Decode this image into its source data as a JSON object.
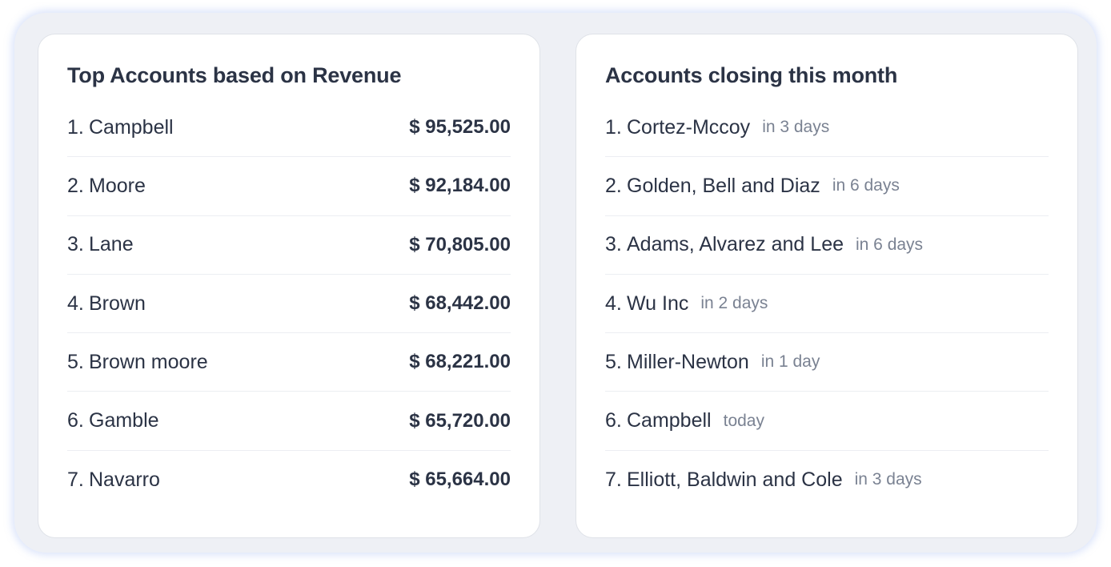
{
  "top_accounts": {
    "title": "Top Accounts based on Revenue",
    "items": [
      {
        "index": "1.",
        "name": "Campbell",
        "amount": "$ 95,525.00"
      },
      {
        "index": "2.",
        "name": "Moore",
        "amount": "$ 92,184.00"
      },
      {
        "index": "3.",
        "name": "Lane",
        "amount": "$ 70,805.00"
      },
      {
        "index": "4.",
        "name": "Brown",
        "amount": "$ 68,442.00"
      },
      {
        "index": "5.",
        "name": "Brown moore",
        "amount": "$ 68,221.00"
      },
      {
        "index": "6.",
        "name": "Gamble",
        "amount": "$ 65,720.00"
      },
      {
        "index": "7.",
        "name": "Navarro",
        "amount": "$ 65,664.00"
      }
    ]
  },
  "closing_accounts": {
    "title": "Accounts closing this month",
    "items": [
      {
        "index": "1.",
        "name": "Cortez-Mccoy",
        "when": "in 3 days"
      },
      {
        "index": "2.",
        "name": "Golden, Bell and Diaz",
        "when": "in 6 days"
      },
      {
        "index": "3.",
        "name": "Adams, Alvarez and Lee",
        "when": "in 6 days"
      },
      {
        "index": "4.",
        "name": "Wu Inc",
        "when": "in 2 days"
      },
      {
        "index": "5.",
        "name": "Miller-Newton",
        "when": "in 1 day"
      },
      {
        "index": "6.",
        "name": "Campbell",
        "when": "today"
      },
      {
        "index": "7.",
        "name": "Elliott, Baldwin and Cole",
        "when": "in 3 days"
      }
    ]
  }
}
